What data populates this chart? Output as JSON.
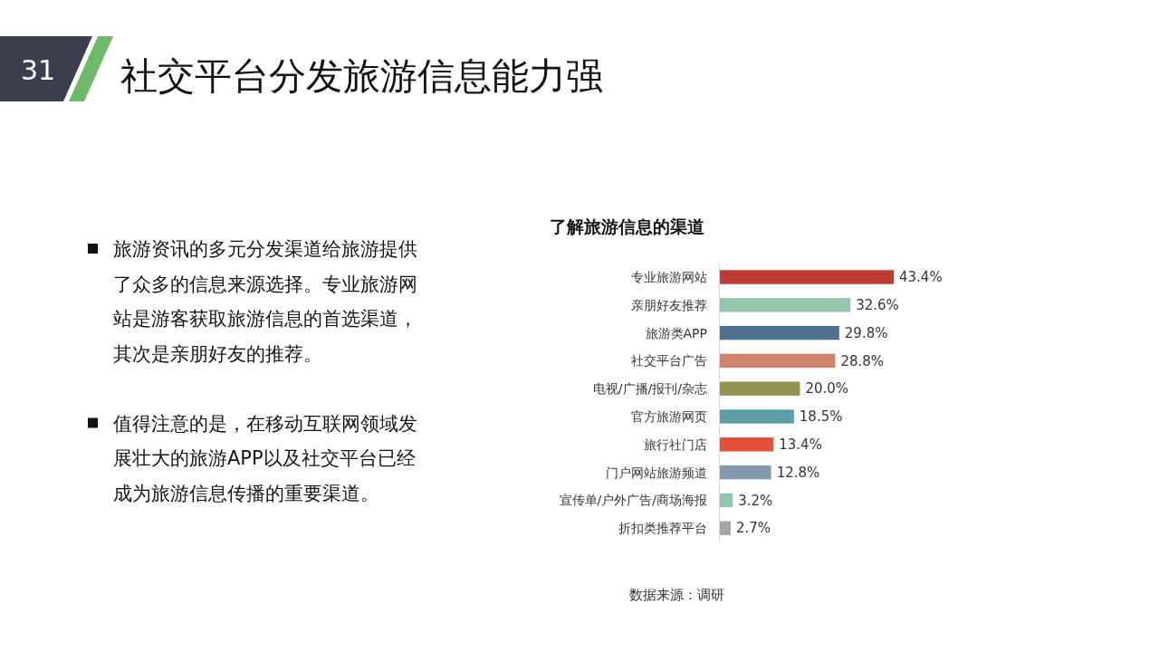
{
  "chart_data": {
    "type": "bar",
    "orientation": "horizontal",
    "title": "了解旅游信息的渠道",
    "categories": [
      "专业旅游网站",
      "亲朋好友推荐",
      "旅游类APP",
      "社交平台广告",
      "电视/广播/报刊/杂志",
      "官方旅游网页",
      "旅行社门店",
      "门户网站旅游频道",
      "宣传单/户外广告/商场海报",
      "折扣类推荐平台"
    ],
    "values": [
      43.4,
      32.6,
      29.8,
      28.8,
      20.0,
      18.5,
      13.4,
      12.8,
      3.2,
      2.7
    ],
    "colors": [
      "#be3a34",
      "#93c6ad",
      "#4f7190",
      "#d0826a",
      "#949450",
      "#5b9ea6",
      "#e4503a",
      "#8498b0",
      "#93c6ad",
      "#a5a5a5"
    ],
    "value_labels": [
      "43.4%",
      "32.6%",
      "29.8%",
      "28.8%",
      "20.0%",
      "18.5%",
      "13.4%",
      "12.8%",
      "3.2%",
      "2.7%"
    ],
    "annotations": [
      "31",
      "社交平台分发旅游信息能力强",
      "旅游资讯的多元分发渠道给旅游提供了众多的信息来源选择。专业旅游网站是游客获取旅游信息的首选渠道，其次是亲朋好友的推荐。",
      "值得注意的是，在移动互联网领域发展壮大的旅游APP以及社交平台已经成为旅游信息传播的重要渠道。",
      "数据来源：调研"
    ]
  }
}
